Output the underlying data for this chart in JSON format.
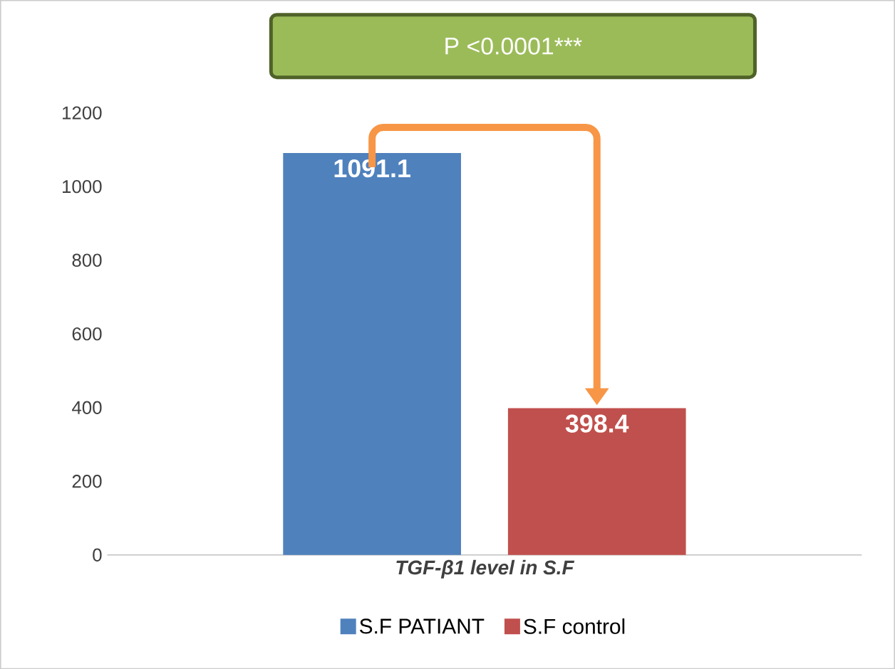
{
  "chart_data": {
    "type": "bar",
    "categories": [
      "TGF-β1 level in S.F"
    ],
    "series": [
      {
        "name": "S.F PATIANT",
        "color": "#4f81bd",
        "values": [
          1091.1
        ]
      },
      {
        "name": "S.F control",
        "color": "#c0504d",
        "values": [
          398.4
        ]
      }
    ],
    "ylim": [
      0,
      1200
    ],
    "yticks": [
      0,
      200,
      400,
      600,
      800,
      1000,
      1200
    ],
    "grid": false,
    "legend": "bottom",
    "data_labels": true,
    "annotations": [
      "P <0.0001***"
    ]
  }
}
